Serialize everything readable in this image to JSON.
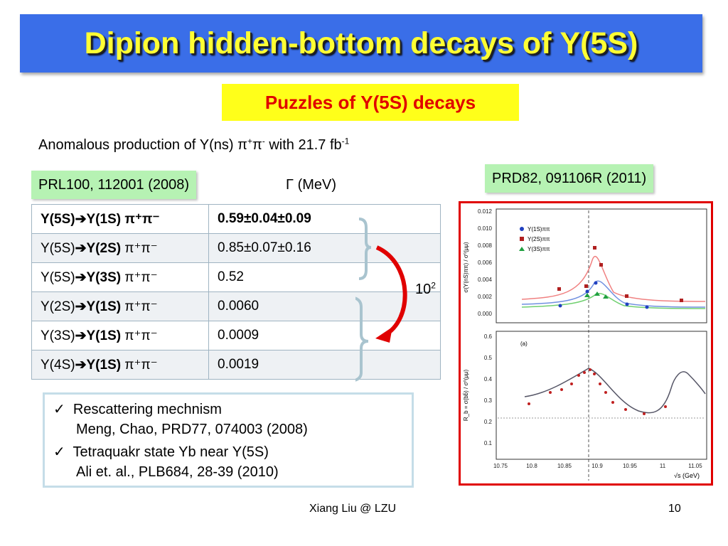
{
  "slide": {
    "title": "Dipion hidden-bottom decays of Υ(5S)",
    "subtitle": "Puzzles of Υ(5S) decays",
    "intro": {
      "text": "Anomalous production of Υ(ns) π",
      "pi_plus": "+",
      "pi": "π",
      "pi_minus": "-",
      "with": " with 21.7 fb",
      "exp": "-1"
    },
    "ref_left": "PRL100, 112001 (2008)",
    "ref_right": "PRD82, 091106R (2011)",
    "gamma_header": "Γ (MeV)",
    "factor": {
      "base": "10",
      "exp": "2"
    },
    "table": [
      {
        "initial": "Υ(5S)",
        "final": "Υ(1S)",
        "mode": "π⁺π⁻",
        "width": "0.59±0.04±0.09"
      },
      {
        "initial": "Υ(5S)",
        "final": "Υ(2S)",
        "mode": "π⁺π⁻",
        "width": "0.85±0.07±0.16"
      },
      {
        "initial": "Υ(5S)",
        "final": "Υ(3S)",
        "mode": "π⁺π⁻",
        "width": "0.52"
      },
      {
        "initial": "Υ(2S)",
        "final": "Υ(1S)",
        "mode": "π⁺π⁻",
        "width": "0.0060"
      },
      {
        "initial": "Υ(3S)",
        "final": "Υ(1S)",
        "mode": "π⁺π⁻",
        "width": "0.0009"
      },
      {
        "initial": "Υ(4S)",
        "final": "Υ(1S)",
        "mode": "π⁺π⁻",
        "width": "0.0019"
      }
    ],
    "notes": [
      {
        "check": "✓",
        "text": "Rescattering mechnism"
      },
      {
        "check": "",
        "text": "Meng, Chao, PRD77, 074003 (2008)"
      },
      {
        "check": "✓",
        "text": "Tetraquakr state Yb near Υ(5S)"
      },
      {
        "check": "",
        "text": "Ali et. al., PLB684, 28-39 (2010)"
      }
    ],
    "footer_author": "Xiang Liu @ LZU",
    "footer_page": "10",
    "colors": {
      "title_bg": "#3a6ee8",
      "title_text": "#ffff33",
      "subtitle_bg": "#ffff1a",
      "subtitle_text": "#e00000",
      "ref_bg": "#b6f2b3",
      "arrow": "#e00000",
      "frame": "#e00000"
    }
  },
  "figure": {
    "top_panel": {
      "ylabel": "σ(Υ(nS)ππ) / σ⁰(μμ)",
      "yticks": [
        "0.012",
        "0.010",
        "0.008",
        "0.006",
        "0.004",
        "0.002",
        "0.000"
      ],
      "legend": [
        "Υ(1S)ππ",
        "Υ(2S)ππ",
        "Υ(3S)ππ"
      ]
    },
    "bottom_panel": {
      "label": "(a)",
      "ylabel": "R_b = σ(bb̄) / σ⁰(μμ)",
      "yticks": [
        "0.6",
        "0.5",
        "0.4",
        "0.3",
        "0.2",
        "0.1"
      ],
      "xticks": [
        "10.75",
        "10.8",
        "10.85",
        "10.9",
        "10.95",
        "11",
        "11.05"
      ],
      "xlabel": "√s (GeV)"
    }
  }
}
